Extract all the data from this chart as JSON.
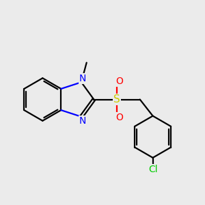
{
  "background_color": "#ebebeb",
  "bond_color": "#000000",
  "nitrogen_color": "#0000ff",
  "sulfur_color": "#cccc00",
  "oxygen_color": "#ff0000",
  "chlorine_color": "#00cc00",
  "line_width": 1.6,
  "font_size_n": 10,
  "font_size_s": 11,
  "font_size_o": 10,
  "font_size_cl": 10,
  "figsize": [
    3.0,
    3.0
  ],
  "dpi": 100,
  "xlim": [
    0,
    10
  ],
  "ylim": [
    0,
    10
  ]
}
